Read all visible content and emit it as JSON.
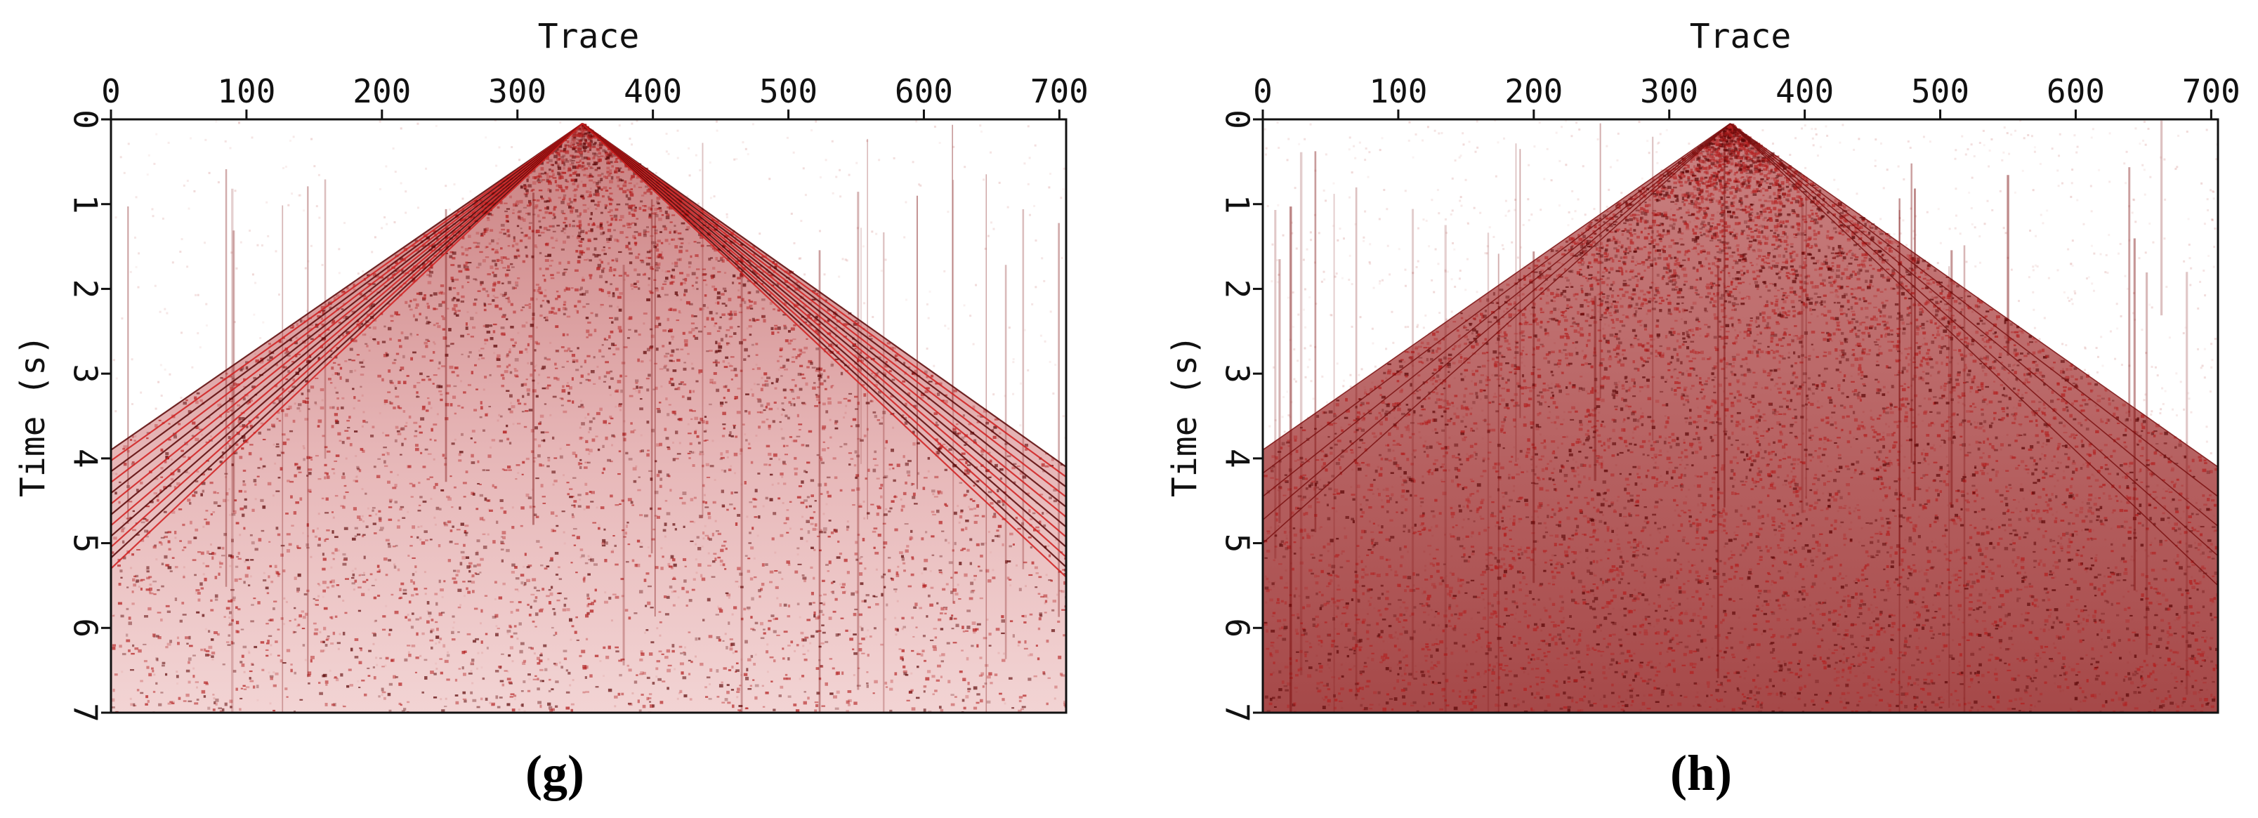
{
  "panels": [
    {
      "id": "g",
      "caption": "(g)",
      "x_axis_title": "Trace",
      "y_axis_title": "Time (s)",
      "x_ticks": [
        "0",
        "100",
        "200",
        "300",
        "400",
        "500",
        "600",
        "700"
      ],
      "y_ticks": [
        "0",
        "1",
        "2",
        "3",
        "4",
        "5",
        "6",
        "7"
      ],
      "style": "dense-cone"
    },
    {
      "id": "h",
      "caption": "(h)",
      "x_axis_title": "Trace",
      "y_axis_title": "Time (s)",
      "x_ticks": [
        "0",
        "100",
        "200",
        "300",
        "400",
        "500",
        "600",
        "700"
      ],
      "y_ticks": [
        "0",
        "1",
        "2",
        "3",
        "4",
        "5",
        "6",
        "7"
      ],
      "style": "noisy-cone"
    }
  ],
  "chart_data": [
    {
      "type": "heatmap",
      "title": "",
      "xlabel": "Trace",
      "ylabel": "Time (s)",
      "xlim": [
        0,
        705
      ],
      "ylim": [
        0,
        7
      ],
      "x_ticks": [
        0,
        100,
        200,
        300,
        400,
        500,
        600,
        700
      ],
      "y_ticks": [
        0,
        1,
        2,
        3,
        4,
        5,
        6,
        7
      ],
      "y_inverted": true,
      "colormap": "white-to-dark-red",
      "apex_trace": 348,
      "apex_time": 0.05,
      "left_edge_time_range": [
        3.9,
        5.3
      ],
      "right_edge_time_range": [
        4.1,
        5.4
      ]
    },
    {
      "type": "heatmap",
      "title": "",
      "xlabel": "Trace",
      "ylabel": "Time (s)",
      "xlim": [
        0,
        705
      ],
      "ylim": [
        0,
        7
      ],
      "x_ticks": [
        0,
        100,
        200,
        300,
        400,
        500,
        600,
        700
      ],
      "y_ticks": [
        0,
        1,
        2,
        3,
        4,
        5,
        6,
        7
      ],
      "y_inverted": true,
      "colormap": "white-to-dark-red",
      "apex_trace": 345,
      "apex_time": 0.05,
      "left_edge_time_range": [
        3.9,
        5.0
      ],
      "right_edge_time_range": [
        4.1,
        5.5
      ]
    }
  ],
  "colors": {
    "dark_red": "#7a0b0b",
    "red": "#b0191c",
    "light_red": "#e8b3b0",
    "background": "#ffffff"
  }
}
